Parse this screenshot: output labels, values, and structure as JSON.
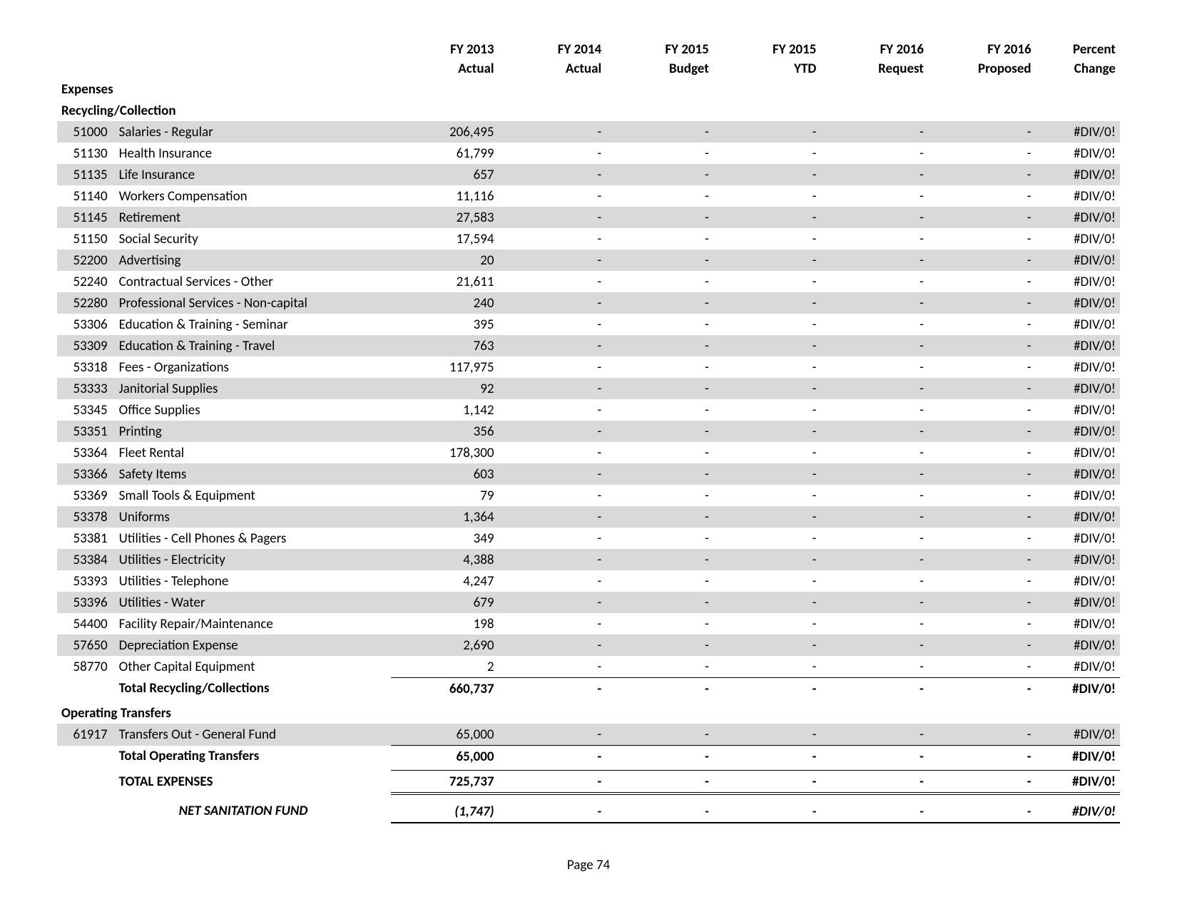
{
  "columns": [
    {
      "l1": "FY 2013",
      "l2": "Actual"
    },
    {
      "l1": "FY 2014",
      "l2": "Actual"
    },
    {
      "l1": "FY 2015",
      "l2": "Budget"
    },
    {
      "l1": "FY 2015",
      "l2": "YTD"
    },
    {
      "l1": "FY 2016",
      "l2": "Request"
    },
    {
      "l1": "FY 2016",
      "l2": "Proposed"
    },
    {
      "l1": "Percent",
      "l2": "Change"
    }
  ],
  "sections": {
    "expenses_title": "Expenses",
    "recycling_title": "Recycling/Collection",
    "operating_title": "Operating Transfers"
  },
  "recycling_rows": [
    {
      "code": "51000",
      "label": "Salaries - Regular",
      "v": [
        "206,495",
        "-",
        "-",
        "-",
        "-",
        "-",
        "#DIV/0!"
      ],
      "shaded": true
    },
    {
      "code": "51130",
      "label": "Health Insurance",
      "v": [
        "61,799",
        "-",
        "-",
        "-",
        "-",
        "-",
        "#DIV/0!"
      ],
      "shaded": false
    },
    {
      "code": "51135",
      "label": "Life Insurance",
      "v": [
        "657",
        "-",
        "-",
        "-",
        "-",
        "-",
        "#DIV/0!"
      ],
      "shaded": true
    },
    {
      "code": "51140",
      "label": "Workers Compensation",
      "v": [
        "11,116",
        "-",
        "-",
        "-",
        "-",
        "-",
        "#DIV/0!"
      ],
      "shaded": false
    },
    {
      "code": "51145",
      "label": "Retirement",
      "v": [
        "27,583",
        "-",
        "-",
        "-",
        "-",
        "-",
        "#DIV/0!"
      ],
      "shaded": true
    },
    {
      "code": "51150",
      "label": "Social Security",
      "v": [
        "17,594",
        "-",
        "-",
        "-",
        "-",
        "-",
        "#DIV/0!"
      ],
      "shaded": false
    },
    {
      "code": "52200",
      "label": "Advertising",
      "v": [
        "20",
        "-",
        "-",
        "-",
        "-",
        "-",
        "#DIV/0!"
      ],
      "shaded": true
    },
    {
      "code": "52240",
      "label": "Contractual Services - Other",
      "v": [
        "21,611",
        "-",
        "-",
        "-",
        "-",
        "-",
        "#DIV/0!"
      ],
      "shaded": false
    },
    {
      "code": "52280",
      "label": "Professional Services - Non-capital",
      "v": [
        "240",
        "-",
        "-",
        "-",
        "-",
        "-",
        "#DIV/0!"
      ],
      "shaded": true
    },
    {
      "code": "53306",
      "label": "Education & Training - Seminar",
      "v": [
        "395",
        "-",
        "-",
        "-",
        "-",
        "-",
        "#DIV/0!"
      ],
      "shaded": false
    },
    {
      "code": "53309",
      "label": "Education & Training - Travel",
      "v": [
        "763",
        "-",
        "-",
        "-",
        "-",
        "-",
        "#DIV/0!"
      ],
      "shaded": true
    },
    {
      "code": "53318",
      "label": "Fees - Organizations",
      "v": [
        "117,975",
        "-",
        "-",
        "-",
        "-",
        "-",
        "#DIV/0!"
      ],
      "shaded": false
    },
    {
      "code": "53333",
      "label": "Janitorial Supplies",
      "v": [
        "92",
        "-",
        "-",
        "-",
        "-",
        "-",
        "#DIV/0!"
      ],
      "shaded": true
    },
    {
      "code": "53345",
      "label": "Office Supplies",
      "v": [
        "1,142",
        "-",
        "-",
        "-",
        "-",
        "-",
        "#DIV/0!"
      ],
      "shaded": false
    },
    {
      "code": "53351",
      "label": "Printing",
      "v": [
        "356",
        "-",
        "-",
        "-",
        "-",
        "-",
        "#DIV/0!"
      ],
      "shaded": true
    },
    {
      "code": "53364",
      "label": "Fleet Rental",
      "v": [
        "178,300",
        "-",
        "-",
        "-",
        "-",
        "-",
        "#DIV/0!"
      ],
      "shaded": false
    },
    {
      "code": "53366",
      "label": "Safety Items",
      "v": [
        "603",
        "-",
        "-",
        "-",
        "-",
        "-",
        "#DIV/0!"
      ],
      "shaded": true
    },
    {
      "code": "53369",
      "label": "Small Tools & Equipment",
      "v": [
        "79",
        "-",
        "-",
        "-",
        "-",
        "-",
        "#DIV/0!"
      ],
      "shaded": false
    },
    {
      "code": "53378",
      "label": "Uniforms",
      "v": [
        "1,364",
        "-",
        "-",
        "-",
        "-",
        "-",
        "#DIV/0!"
      ],
      "shaded": true
    },
    {
      "code": "53381",
      "label": "Utilities - Cell Phones & Pagers",
      "v": [
        "349",
        "-",
        "-",
        "-",
        "-",
        "-",
        "#DIV/0!"
      ],
      "shaded": false
    },
    {
      "code": "53384",
      "label": "Utilities - Electricity",
      "v": [
        "4,388",
        "-",
        "-",
        "-",
        "-",
        "-",
        "#DIV/0!"
      ],
      "shaded": true
    },
    {
      "code": "53393",
      "label": "Utilities - Telephone",
      "v": [
        "4,247",
        "-",
        "-",
        "-",
        "-",
        "-",
        "#DIV/0!"
      ],
      "shaded": false
    },
    {
      "code": "53396",
      "label": "Utilities - Water",
      "v": [
        "679",
        "-",
        "-",
        "-",
        "-",
        "-",
        "#DIV/0!"
      ],
      "shaded": true
    },
    {
      "code": "54400",
      "label": "Facility Repair/Maintenance",
      "v": [
        "198",
        "-",
        "-",
        "-",
        "-",
        "-",
        "#DIV/0!"
      ],
      "shaded": false
    },
    {
      "code": "57650",
      "label": "Depreciation Expense",
      "v": [
        "2,690",
        "-",
        "-",
        "-",
        "-",
        "-",
        "#DIV/0!"
      ],
      "shaded": true
    },
    {
      "code": "58770",
      "label": "Other Capital Equipment",
      "v": [
        "2",
        "-",
        "-",
        "-",
        "-",
        "-",
        "#DIV/0!"
      ],
      "shaded": false
    }
  ],
  "recycling_total": {
    "label": "Total Recycling/Collections",
    "v": [
      "660,737",
      "-",
      "-",
      "-",
      "-",
      "-",
      "#DIV/0!"
    ]
  },
  "operating_rows": [
    {
      "code": "61917",
      "label": "Transfers Out - General Fund",
      "v": [
        "65,000",
        "-",
        "-",
        "-",
        "-",
        "-",
        "#DIV/0!"
      ],
      "shaded": true
    }
  ],
  "operating_total": {
    "label": "Total Operating Transfers",
    "v": [
      "65,000",
      "-",
      "-",
      "-",
      "-",
      "-",
      "#DIV/0!"
    ]
  },
  "expenses_total": {
    "label": "TOTAL EXPENSES",
    "v": [
      "725,737",
      "-",
      "-",
      "-",
      "-",
      "-",
      "#DIV/0!"
    ]
  },
  "net": {
    "label": "NET SANITATION FUND",
    "v": [
      "(1,747)",
      "-",
      "-",
      "-",
      "-",
      "-",
      "#DIV/0!"
    ]
  },
  "page_label": "Page 74"
}
